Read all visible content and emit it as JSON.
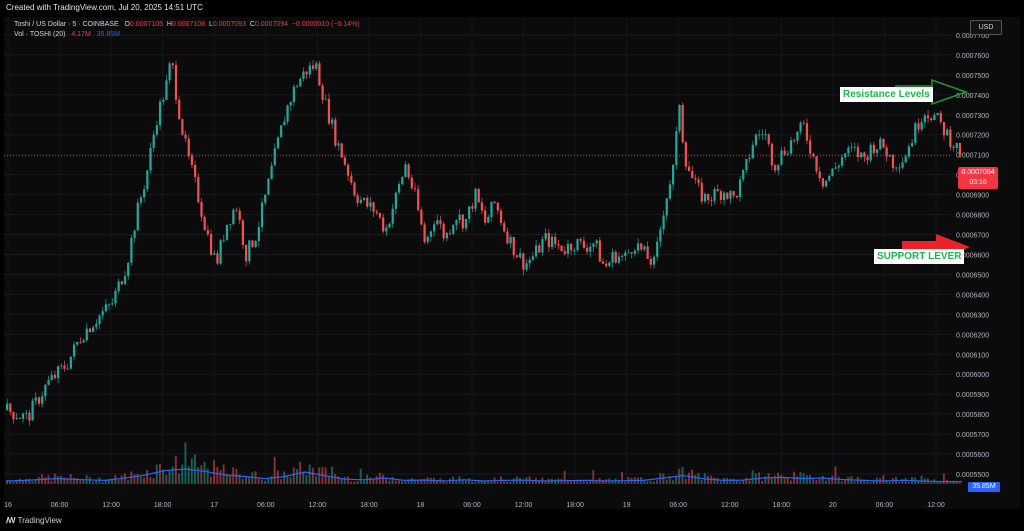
{
  "watermark": "Created with TradingView.com, Jul 20, 2025 14:51 UTC",
  "header": {
    "symbol": "Toshi / US Dollar · 5 · COINBASE",
    "open_label": "O",
    "open_value": "0.0007105",
    "high_label": "H",
    "high_value": "0.0007108",
    "low_label": "L",
    "low_value": "0.0007093",
    "close_label": "C",
    "close_value": "0.0007094",
    "change": "−0.0000010 (−0.14%)",
    "vol_label": "Vol · TOSHI (20)",
    "vol_value": "4.17M",
    "vol_ma_value": "35.85M"
  },
  "currency_button": "USD",
  "price_tag": {
    "price": "0.0007094",
    "countdown": "03:16"
  },
  "volume_tag": "35.85M",
  "annotations": {
    "resistance": "Resistance Levels",
    "support": "SUPPORT LEVER"
  },
  "footer_logo": "TradingView",
  "colors": {
    "up": "#26a69a",
    "down": "#ef5350",
    "volume_ma": "#2962ff",
    "resistance_arrow": "#1f9a2f",
    "support_arrow": "#e8232a",
    "background": "#0b0b0c"
  },
  "chart_data": {
    "type": "candlestick",
    "y_axis_ticks": [
      "0.0007700",
      "0.0007600",
      "0.0007500",
      "0.0007400",
      "0.0007300",
      "0.0007200",
      "0.0007100",
      "0.0007000",
      "0.0006900",
      "0.0006800",
      "0.0006700",
      "0.0006600",
      "0.0006500",
      "0.0006400",
      "0.0006300",
      "0.0006200",
      "0.0006100",
      "0.0006000",
      "0.0005900",
      "0.0005800",
      "0.0005700",
      "0.0005600",
      "0.0005500"
    ],
    "x_axis_ticks": [
      "16",
      "06:00",
      "12:00",
      "18:00",
      "17",
      "06:00",
      "12:00",
      "18:00",
      "18",
      "06:00",
      "12:00",
      "18:00",
      "19",
      "06:00",
      "12:00",
      "18:00",
      "20",
      "06:00",
      "12:00"
    ],
    "ylim": [
      0.000545,
      0.000779
    ],
    "current_price": 0.0007094,
    "price_path": [
      [
        0,
        0.000582
      ],
      [
        0.02,
        0.000578
      ],
      [
        0.04,
        0.000595
      ],
      [
        0.06,
        0.000605
      ],
      [
        0.075,
        0.00062
      ],
      [
        0.09,
        0.000628
      ],
      [
        0.105,
        0.000635
      ],
      [
        0.12,
        0.000655
      ],
      [
        0.13,
        0.00068
      ],
      [
        0.14,
        0.0007
      ],
      [
        0.15,
        0.000728
      ],
      [
        0.16,
        0.000745
      ],
      [
        0.165,
        0.000758
      ],
      [
        0.17,
        0.00074
      ],
      [
        0.175,
        0.000725
      ],
      [
        0.18,
        0.000712
      ],
      [
        0.19,
        0.000693
      ],
      [
        0.2,
        0.000672
      ],
      [
        0.21,
        0.000655
      ],
      [
        0.22,
        0.000675
      ],
      [
        0.23,
        0.000685
      ],
      [
        0.24,
        0.00066
      ],
      [
        0.25,
        0.00067
      ],
      [
        0.26,
        0.00069
      ],
      [
        0.27,
        0.000712
      ],
      [
        0.28,
        0.000732
      ],
      [
        0.29,
        0.000745
      ],
      [
        0.3,
        0.000752
      ],
      [
        0.31,
        0.000755
      ],
      [
        0.32,
        0.000735
      ],
      [
        0.33,
        0.000718
      ],
      [
        0.34,
        0.000705
      ],
      [
        0.35,
        0.00069
      ],
      [
        0.36,
        0.000685
      ],
      [
        0.37,
        0.000682
      ],
      [
        0.38,
        0.000672
      ],
      [
        0.39,
        0.000688
      ],
      [
        0.4,
        0.000705
      ],
      [
        0.41,
        0.000688
      ],
      [
        0.42,
        0.000665
      ],
      [
        0.43,
        0.00068
      ],
      [
        0.44,
        0.000668
      ],
      [
        0.45,
        0.00068
      ],
      [
        0.46,
        0.000676
      ],
      [
        0.47,
        0.00069
      ],
      [
        0.48,
        0.000676
      ],
      [
        0.49,
        0.000686
      ],
      [
        0.5,
        0.000672
      ],
      [
        0.51,
        0.000662
      ],
      [
        0.52,
        0.000655
      ],
      [
        0.53,
        0.00066
      ],
      [
        0.54,
        0.000668
      ],
      [
        0.55,
        0.000665
      ],
      [
        0.56,
        0.000663
      ],
      [
        0.57,
        0.000666
      ],
      [
        0.58,
        0.000664
      ],
      [
        0.59,
        0.000666
      ],
      [
        0.6,
        0.000653
      ],
      [
        0.61,
        0.00066
      ],
      [
        0.62,
        0.000658
      ],
      [
        0.63,
        0.000666
      ],
      [
        0.64,
        0.00066
      ],
      [
        0.65,
        0.000655
      ],
      [
        0.66,
        0.000685
      ],
      [
        0.67,
        0.000705
      ],
      [
        0.675,
        0.000738
      ],
      [
        0.68,
        0.00071
      ],
      [
        0.69,
        0.000695
      ],
      [
        0.7,
        0.000688
      ],
      [
        0.71,
        0.00069
      ],
      [
        0.72,
        0.000692
      ],
      [
        0.73,
        0.000688
      ],
      [
        0.74,
        0.0007
      ],
      [
        0.75,
        0.000718
      ],
      [
        0.76,
        0.000722
      ],
      [
        0.77,
        0.000705
      ],
      [
        0.78,
        0.000712
      ],
      [
        0.79,
        0.000718
      ],
      [
        0.8,
        0.000724
      ],
      [
        0.81,
        0.000708
      ],
      [
        0.82,
        0.000696
      ],
      [
        0.83,
        0.000702
      ],
      [
        0.84,
        0.00071
      ],
      [
        0.85,
        0.000712
      ],
      [
        0.86,
        0.000708
      ],
      [
        0.87,
        0.000715
      ],
      [
        0.88,
        0.000714
      ],
      [
        0.89,
        0.000706
      ],
      [
        0.9,
        0.000708
      ],
      [
        0.91,
        0.00072
      ],
      [
        0.92,
        0.000732
      ],
      [
        0.93,
        0.00073
      ],
      [
        0.94,
        0.000723
      ],
      [
        0.95,
        0.000716
      ],
      [
        0.955,
        0.000712
      ],
      [
        0.96,
        0.0007094
      ]
    ],
    "volume_path": [
      [
        0,
        0.1
      ],
      [
        0.02,
        0.12
      ],
      [
        0.05,
        0.18
      ],
      [
        0.08,
        0.14
      ],
      [
        0.1,
        0.12
      ],
      [
        0.12,
        0.2
      ],
      [
        0.14,
        0.3
      ],
      [
        0.16,
        0.45
      ],
      [
        0.18,
        0.5
      ],
      [
        0.2,
        0.42
      ],
      [
        0.22,
        0.3
      ],
      [
        0.24,
        0.25
      ],
      [
        0.26,
        0.18
      ],
      [
        0.28,
        0.25
      ],
      [
        0.3,
        0.4
      ],
      [
        0.32,
        0.28
      ],
      [
        0.34,
        0.16
      ],
      [
        0.36,
        0.14
      ],
      [
        0.38,
        0.2
      ],
      [
        0.4,
        0.12
      ],
      [
        0.42,
        0.13
      ],
      [
        0.44,
        0.1
      ],
      [
        0.46,
        0.14
      ],
      [
        0.48,
        0.1
      ],
      [
        0.5,
        0.12
      ],
      [
        0.52,
        0.13
      ],
      [
        0.54,
        0.1
      ],
      [
        0.56,
        0.11
      ],
      [
        0.58,
        0.12
      ],
      [
        0.6,
        0.1
      ],
      [
        0.62,
        0.11
      ],
      [
        0.64,
        0.12
      ],
      [
        0.66,
        0.2
      ],
      [
        0.68,
        0.28
      ],
      [
        0.7,
        0.18
      ],
      [
        0.72,
        0.12
      ],
      [
        0.74,
        0.13
      ],
      [
        0.76,
        0.2
      ],
      [
        0.78,
        0.22
      ],
      [
        0.8,
        0.18
      ],
      [
        0.82,
        0.2
      ],
      [
        0.84,
        0.15
      ],
      [
        0.86,
        0.12
      ],
      [
        0.88,
        0.1
      ],
      [
        0.9,
        0.12
      ],
      [
        0.92,
        0.1
      ],
      [
        0.94,
        0.08
      ],
      [
        0.96,
        0.08
      ]
    ]
  }
}
